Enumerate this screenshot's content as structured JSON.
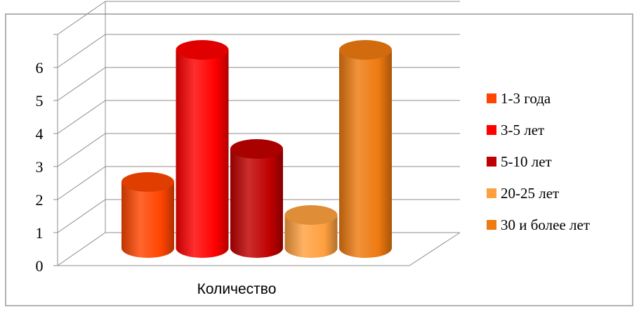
{
  "chart_data": {
    "type": "bar",
    "variant": "3d-cylinder",
    "categories": [
      "Количество"
    ],
    "series": [
      {
        "name": "1-3 года",
        "values": [
          2
        ],
        "color": "#FF4500"
      },
      {
        "name": "3-5 лет",
        "values": [
          6
        ],
        "color": "#FF0000"
      },
      {
        "name": "5-10 лет",
        "values": [
          3
        ],
        "color": "#C00000"
      },
      {
        "name": "20-25 лет",
        "values": [
          1
        ],
        "color": "#FFA040"
      },
      {
        "name": "30 и более лет",
        "values": [
          6
        ],
        "color": "#EE7A10"
      }
    ],
    "y_ticks": [
      "0",
      "1",
      "2",
      "3",
      "4",
      "5",
      "6"
    ],
    "ylim": [
      0,
      6
    ],
    "grid": true,
    "legend_position": "right"
  }
}
